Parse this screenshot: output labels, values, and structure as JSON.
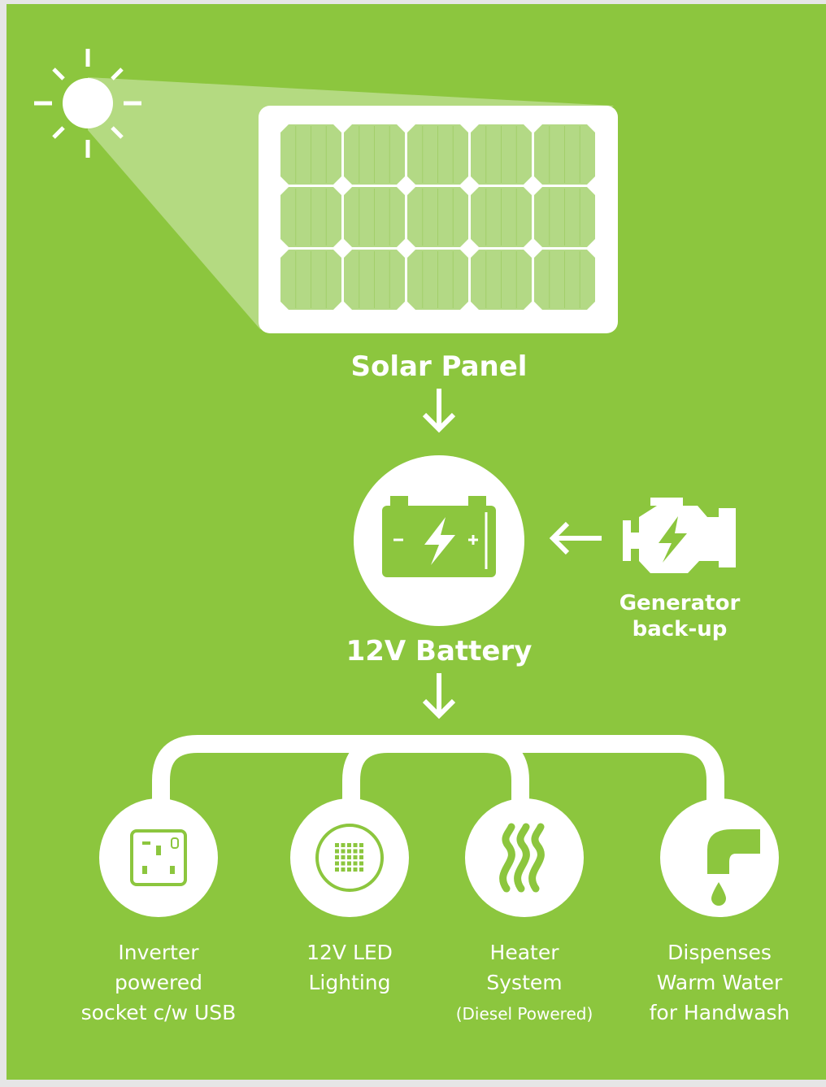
{
  "source": {
    "label": "Solar Panel"
  },
  "storage": {
    "label": "12V Battery"
  },
  "backup": {
    "lines": [
      "Generator",
      "back-up"
    ]
  },
  "outputs": [
    {
      "lines": [
        "Inverter",
        "powered",
        "socket c/w USB"
      ]
    },
    {
      "lines": [
        "12V LED",
        "Lighting"
      ]
    },
    {
      "lines": [
        "Heater",
        "System",
        "(Diesel Powered)"
      ]
    },
    {
      "lines": [
        "Dispenses",
        "Warm Water",
        "for Handwash"
      ]
    }
  ]
}
